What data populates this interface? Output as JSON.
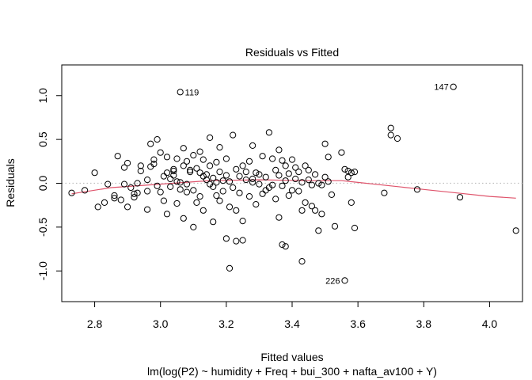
{
  "chart_data": {
    "type": "scatter",
    "title": "Residuals vs Fitted",
    "xlabel": "Fitted values",
    "subtitle": "lm(log(P2) ~ humidity + Freq + bui_300 + nafta_av100 + Y)",
    "ylabel": "Residuals",
    "xlim": [
      2.7,
      4.1
    ],
    "ylim": [
      -1.35,
      1.35
    ],
    "xticks": [
      2.8,
      3.0,
      3.2,
      3.4,
      3.6,
      3.8,
      4.0
    ],
    "xtick_labels": [
      "2.8",
      "3.0",
      "3.2",
      "3.4",
      "3.6",
      "3.8",
      "4.0"
    ],
    "yticks": [
      -1.0,
      -0.5,
      0.0,
      0.5,
      1.0
    ],
    "ytick_labels": [
      "-1.0",
      "-0.5",
      "0.0",
      "0.5",
      "1.0"
    ],
    "reference_line": {
      "y": 0,
      "style": "dotted",
      "color": "#bebebe"
    },
    "smooth_color": "#df536b",
    "smooth": {
      "x": [
        2.73,
        2.85,
        3.0,
        3.15,
        3.3,
        3.45,
        3.55,
        3.6,
        3.7,
        3.8,
        3.9,
        4.0,
        4.08
      ],
      "y": [
        -0.12,
        -0.05,
        -0.01,
        0.03,
        0.04,
        0.03,
        0.03,
        0.01,
        -0.03,
        -0.07,
        -0.11,
        -0.15,
        -0.17
      ]
    },
    "points": [
      [
        2.73,
        -0.11
      ],
      [
        2.77,
        -0.08
      ],
      [
        2.8,
        0.12
      ],
      [
        2.81,
        -0.27
      ],
      [
        2.83,
        -0.22
      ],
      [
        2.84,
        -0.01
      ],
      [
        2.86,
        -0.14
      ],
      [
        2.86,
        -0.17
      ],
      [
        2.87,
        0.31
      ],
      [
        2.88,
        -0.19
      ],
      [
        2.89,
        -0.01
      ],
      [
        2.89,
        0.18
      ],
      [
        2.9,
        0.23
      ],
      [
        2.9,
        -0.27
      ],
      [
        2.91,
        -0.05
      ],
      [
        2.92,
        -0.12
      ],
      [
        2.92,
        -0.16
      ],
      [
        2.93,
        0.0
      ],
      [
        2.93,
        -0.11
      ],
      [
        2.94,
        0.2
      ],
      [
        2.94,
        0.14
      ],
      [
        2.96,
        -0.09
      ],
      [
        2.96,
        0.04
      ],
      [
        2.96,
        -0.3
      ],
      [
        2.97,
        0.45
      ],
      [
        2.97,
        0.19
      ],
      [
        2.98,
        0.22
      ],
      [
        2.98,
        0.27
      ],
      [
        2.99,
        -0.03
      ],
      [
        2.99,
        0.5
      ],
      [
        3.0,
        0.35
      ],
      [
        3.0,
        -0.1
      ],
      [
        3.01,
        0.08
      ],
      [
        3.01,
        -0.2
      ],
      [
        3.02,
        -0.35
      ],
      [
        3.02,
        0.3
      ],
      [
        3.02,
        0.12
      ],
      [
        3.03,
        -0.04
      ],
      [
        3.03,
        0.05
      ],
      [
        3.04,
        0.16
      ],
      [
        3.04,
        0.14
      ],
      [
        3.04,
        0.09
      ],
      [
        3.05,
        -0.23
      ],
      [
        3.05,
        0.28
      ],
      [
        3.05,
        0.02
      ],
      [
        3.06,
        0.01
      ],
      [
        3.06,
        -0.07
      ],
      [
        3.07,
        0.4
      ],
      [
        3.07,
        -0.4
      ],
      [
        3.07,
        0.2
      ],
      [
        3.08,
        0.25
      ],
      [
        3.08,
        -0.01
      ],
      [
        3.08,
        -0.1
      ],
      [
        3.09,
        0.15
      ],
      [
        3.09,
        0.13
      ],
      [
        3.1,
        -0.5
      ],
      [
        3.1,
        0.32
      ],
      [
        3.1,
        -0.08
      ],
      [
        3.11,
        0.17
      ],
      [
        3.11,
        -0.22
      ],
      [
        3.12,
        0.36
      ],
      [
        3.12,
        0.12
      ],
      [
        3.12,
        -0.15
      ],
      [
        3.13,
        0.08
      ],
      [
        3.13,
        0.27
      ],
      [
        3.13,
        -0.31
      ],
      [
        3.14,
        0.04
      ],
      [
        3.14,
        0.1
      ],
      [
        3.15,
        0.2
      ],
      [
        3.15,
        -0.01
      ],
      [
        3.15,
        0.52
      ],
      [
        3.16,
        -0.04
      ],
      [
        3.16,
        -0.44
      ],
      [
        3.16,
        0.06
      ],
      [
        3.17,
        0.24
      ],
      [
        3.17,
        -0.14
      ],
      [
        3.17,
        0.01
      ],
      [
        3.18,
        0.13
      ],
      [
        3.18,
        0.41
      ],
      [
        3.18,
        -0.2
      ],
      [
        3.19,
        0.03
      ],
      [
        3.19,
        -0.09
      ],
      [
        3.2,
        0.28
      ],
      [
        3.2,
        0.09
      ],
      [
        3.2,
        -0.63
      ],
      [
        3.21,
        -0.27
      ],
      [
        3.21,
        0.02
      ],
      [
        3.21,
        -0.97
      ],
      [
        3.22,
        0.55
      ],
      [
        3.22,
        -0.05
      ],
      [
        3.23,
        0.16
      ],
      [
        3.23,
        -0.66
      ],
      [
        3.23,
        -0.31
      ],
      [
        3.24,
        -0.11
      ],
      [
        3.24,
        0.08
      ],
      [
        3.25,
        0.2
      ],
      [
        3.25,
        -0.43
      ],
      [
        3.25,
        -0.65
      ],
      [
        3.26,
        0.04
      ],
      [
        3.26,
        0.13
      ],
      [
        3.27,
        0.25
      ],
      [
        3.27,
        -0.15
      ],
      [
        3.28,
        0.05
      ],
      [
        3.28,
        0.43
      ],
      [
        3.28,
        0.01
      ],
      [
        3.29,
        -0.24
      ],
      [
        3.29,
        0.12
      ],
      [
        3.3,
        0.1
      ],
      [
        3.3,
        -0.01
      ],
      [
        3.31,
        0.31
      ],
      [
        3.31,
        -0.12
      ],
      [
        3.32,
        -0.08
      ],
      [
        3.32,
        0.07
      ],
      [
        3.33,
        0.58
      ],
      [
        3.33,
        -0.05
      ],
      [
        3.34,
        0.28
      ],
      [
        3.34,
        -0.02
      ],
      [
        3.35,
        0.15
      ],
      [
        3.35,
        -0.18
      ],
      [
        3.36,
        0.09
      ],
      [
        3.36,
        0.38
      ],
      [
        3.36,
        -0.39
      ],
      [
        3.37,
        -0.03
      ],
      [
        3.37,
        0.26
      ],
      [
        3.37,
        -0.7
      ],
      [
        3.38,
        -0.72
      ],
      [
        3.38,
        0.03
      ],
      [
        3.38,
        0.2
      ],
      [
        3.39,
        -0.14
      ],
      [
        3.39,
        0.11
      ],
      [
        3.4,
        0.27
      ],
      [
        3.4,
        -0.08
      ],
      [
        3.41,
        0.05
      ],
      [
        3.41,
        0.18
      ],
      [
        3.42,
        -0.09
      ],
      [
        3.42,
        0.13
      ],
      [
        3.43,
        -0.31
      ],
      [
        3.43,
        -0.89
      ],
      [
        3.43,
        0.01
      ],
      [
        3.44,
        0.2
      ],
      [
        3.44,
        -0.22
      ],
      [
        3.45,
        0.04
      ],
      [
        3.45,
        0.15
      ],
      [
        3.46,
        -0.26
      ],
      [
        3.46,
        -0.02
      ],
      [
        3.47,
        0.1
      ],
      [
        3.47,
        -0.31
      ],
      [
        3.48,
        -0.54
      ],
      [
        3.48,
        0.0
      ],
      [
        3.49,
        -0.35
      ],
      [
        3.49,
        -0.02
      ],
      [
        3.5,
        0.07
      ],
      [
        3.5,
        0.45
      ],
      [
        3.51,
        0.02
      ],
      [
        3.51,
        0.3
      ],
      [
        3.52,
        -0.13
      ],
      [
        3.53,
        -0.49
      ],
      [
        3.55,
        0.35
      ],
      [
        3.56,
        -1.11
      ],
      [
        3.56,
        0.16
      ],
      [
        3.57,
        0.07
      ],
      [
        3.57,
        0.14
      ],
      [
        3.58,
        0.12
      ],
      [
        3.58,
        -0.22
      ],
      [
        3.59,
        -0.51
      ],
      [
        3.59,
        0.13
      ],
      [
        3.68,
        -0.11
      ],
      [
        3.7,
        0.63
      ],
      [
        3.7,
        0.55
      ],
      [
        3.72,
        0.51
      ],
      [
        3.78,
        -0.07
      ],
      [
        3.89,
        1.1
      ],
      [
        3.91,
        -0.16
      ],
      [
        4.08,
        -0.54
      ],
      [
        3.06,
        1.04
      ]
    ],
    "labeled_points": [
      {
        "label": "119",
        "x": 3.06,
        "y": 1.04,
        "side": "right"
      },
      {
        "label": "147",
        "x": 3.89,
        "y": 1.1,
        "side": "left"
      },
      {
        "label": "226",
        "x": 3.56,
        "y": -1.11,
        "side": "left"
      }
    ]
  }
}
